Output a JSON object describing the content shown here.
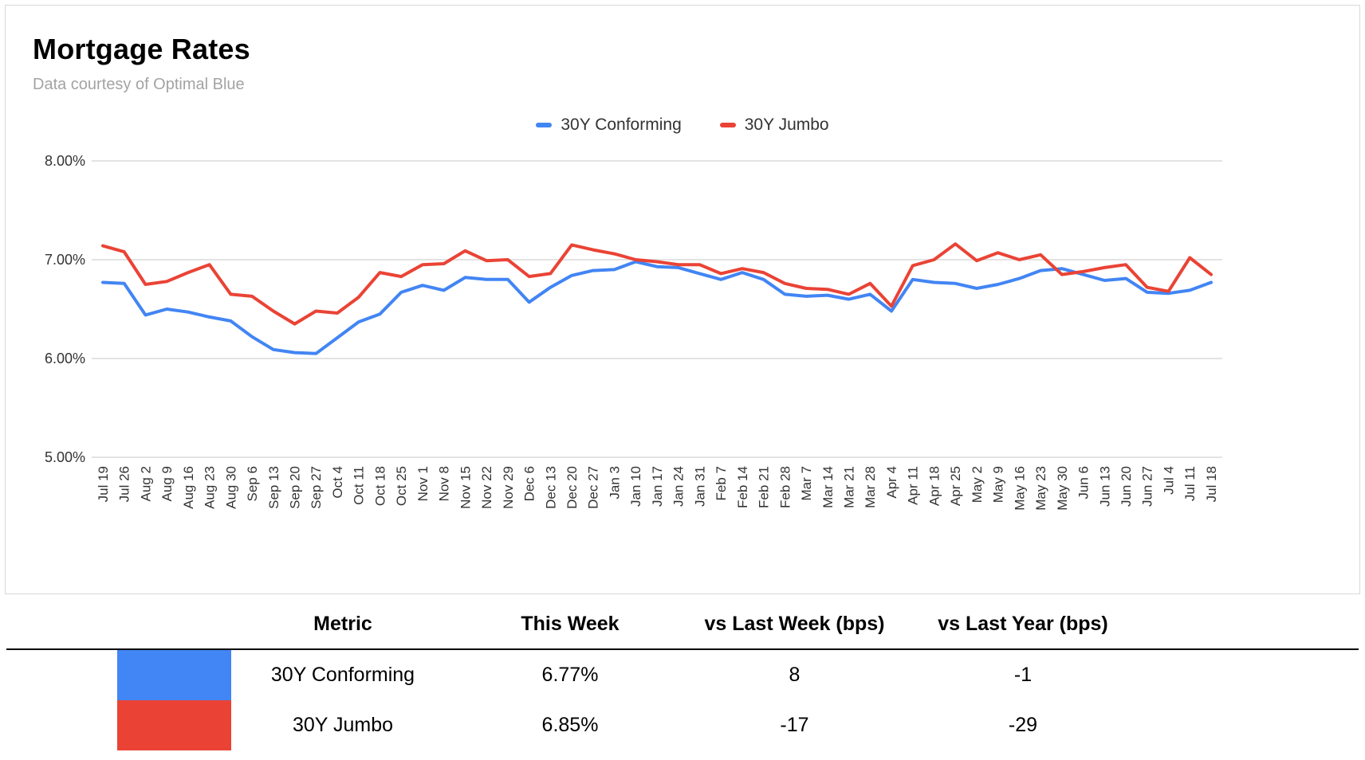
{
  "header": {
    "title": "Mortgage Rates",
    "subtitle": "Data courtesy of Optimal Blue"
  },
  "colors": {
    "conforming": "#4285F4",
    "jumbo": "#EA4335",
    "gridline": "#e3e3e3",
    "axis_text": "#333333"
  },
  "chart_data": {
    "type": "line",
    "title": "Mortgage Rates",
    "grid": true,
    "legend_position": "top",
    "ylim": [
      5.0,
      8.0
    ],
    "y_ticks": [
      {
        "label": "8.00%",
        "value": 8.0
      },
      {
        "label": "7.00%",
        "value": 7.0
      },
      {
        "label": "6.00%",
        "value": 6.0
      },
      {
        "label": "5.00%",
        "value": 5.0
      }
    ],
    "x": [
      "Jul 19",
      "Jul 26",
      "Aug 2",
      "Aug 9",
      "Aug 16",
      "Aug 23",
      "Aug 30",
      "Sep 6",
      "Sep 13",
      "Sep 20",
      "Sep 27",
      "Oct 4",
      "Oct 11",
      "Oct 18",
      "Oct 25",
      "Nov 1",
      "Nov 8",
      "Nov 15",
      "Nov 22",
      "Nov 29",
      "Dec 6",
      "Dec 13",
      "Dec 20",
      "Dec 27",
      "Jan 3",
      "Jan 10",
      "Jan 17",
      "Jan 24",
      "Jan 31",
      "Feb 7",
      "Feb 14",
      "Feb 21",
      "Feb 28",
      "Mar 7",
      "Mar 14",
      "Mar 21",
      "Mar 28",
      "Apr 4",
      "Apr 11",
      "Apr 18",
      "Apr 25",
      "May 2",
      "May 9",
      "May 16",
      "May 23",
      "May 30",
      "Jun 6",
      "Jun 13",
      "Jun 20",
      "Jun 27",
      "Jul 4",
      "Jul 11",
      "Jul 18"
    ],
    "series": [
      {
        "name": "30Y Conforming",
        "color_key": "conforming",
        "values": [
          6.77,
          6.76,
          6.44,
          6.5,
          6.47,
          6.42,
          6.38,
          6.22,
          6.09,
          6.06,
          6.05,
          6.21,
          6.37,
          6.45,
          6.67,
          6.74,
          6.69,
          6.82,
          6.8,
          6.8,
          6.57,
          6.72,
          6.84,
          6.89,
          6.9,
          6.98,
          6.93,
          6.92,
          6.86,
          6.8,
          6.87,
          6.8,
          6.65,
          6.63,
          6.64,
          6.6,
          6.65,
          6.48,
          6.8,
          6.77,
          6.76,
          6.71,
          6.75,
          6.81,
          6.89,
          6.91,
          6.85,
          6.79,
          6.81,
          6.67,
          6.66,
          6.69,
          6.77
        ]
      },
      {
        "name": "30Y Jumbo",
        "color_key": "jumbo",
        "values": [
          7.14,
          7.08,
          6.75,
          6.78,
          6.87,
          6.95,
          6.65,
          6.63,
          6.48,
          6.35,
          6.48,
          6.46,
          6.62,
          6.87,
          6.83,
          6.95,
          6.96,
          7.09,
          6.99,
          7.0,
          6.83,
          6.86,
          7.15,
          7.1,
          7.06,
          7.0,
          6.98,
          6.95,
          6.95,
          6.86,
          6.91,
          6.87,
          6.76,
          6.71,
          6.7,
          6.65,
          6.76,
          6.53,
          6.94,
          7.0,
          7.16,
          6.99,
          7.07,
          7.0,
          7.05,
          6.85,
          6.88,
          6.92,
          6.95,
          6.72,
          6.68,
          7.02,
          6.85
        ]
      }
    ]
  },
  "table": {
    "headers": [
      "Metric",
      "This Week",
      "vs Last Week (bps)",
      "vs Last Year (bps)"
    ],
    "rows": [
      {
        "metric": "30Y Conforming",
        "this_week": "6.77%",
        "vs_last_week": "8",
        "vs_last_year": "-1",
        "swatch_color": "#4285F4"
      },
      {
        "metric": "30Y Jumbo",
        "this_week": "6.85%",
        "vs_last_week": "-17",
        "vs_last_year": "-29",
        "swatch_color": "#EA4335"
      }
    ]
  }
}
